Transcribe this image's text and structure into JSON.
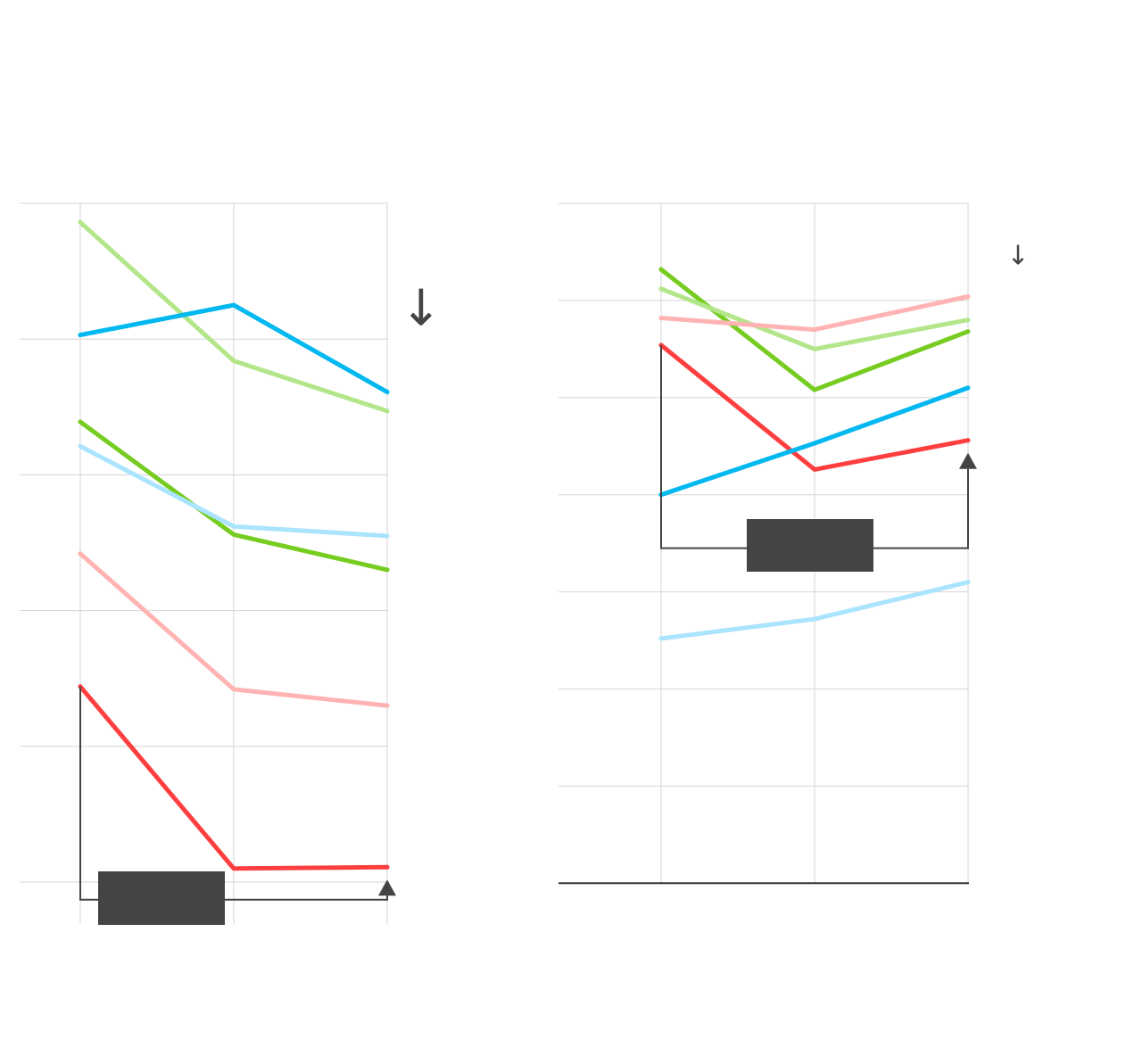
{
  "chart_data": [
    {
      "type": "line",
      "title": "",
      "xlabel": "",
      "ylabel": "",
      "categories": [
        "",
        "",
        ""
      ],
      "ylim": [
        0,
        5
      ],
      "y_inverted": true,
      "grid": true,
      "legend": "none",
      "series": [
        {
          "color": "#b3e68a",
          "values": [
            0.14,
            1.16,
            1.53
          ]
        },
        {
          "color": "#00b8f0",
          "values": [
            0.97,
            0.75,
            1.39
          ]
        },
        {
          "color": "#77cc22",
          "values": [
            1.61,
            2.44,
            2.7
          ]
        },
        {
          "color": "#aae4ff",
          "values": [
            1.79,
            2.38,
            2.45
          ]
        },
        {
          "color": "#ffb3b3",
          "values": [
            2.58,
            3.58,
            3.7
          ]
        },
        {
          "color": "#ff3f3f",
          "values": [
            3.56,
            4.9,
            4.89
          ]
        }
      ],
      "annotation": {
        "from_index": 0,
        "to_index": 2,
        "level": 5.13,
        "label": ""
      },
      "indicator_arrow": "↓"
    },
    {
      "type": "line",
      "title": "",
      "xlabel": "",
      "ylabel": "",
      "categories": [
        "",
        "",
        ""
      ],
      "ylim": [
        0,
        7
      ],
      "y_inverted": true,
      "grid": true,
      "legend": "none",
      "series": [
        {
          "color": "#77cc22",
          "values": [
            0.68,
            1.92,
            1.32
          ]
        },
        {
          "color": "#b3e68a",
          "values": [
            0.88,
            1.5,
            1.2
          ]
        },
        {
          "color": "#ffb3b3",
          "values": [
            1.18,
            1.3,
            0.96
          ]
        },
        {
          "color": "#ff3f3f",
          "values": [
            1.46,
            2.74,
            2.44
          ]
        },
        {
          "color": "#00b8f0",
          "values": [
            3.0,
            2.47,
            1.9
          ]
        },
        {
          "color": "#aae4ff",
          "values": [
            4.48,
            4.28,
            3.9
          ]
        }
      ],
      "annotation": {
        "from_index": 0,
        "to_index": 2,
        "level": 3.55,
        "label": ""
      },
      "indicator_arrow": "↓"
    }
  ]
}
